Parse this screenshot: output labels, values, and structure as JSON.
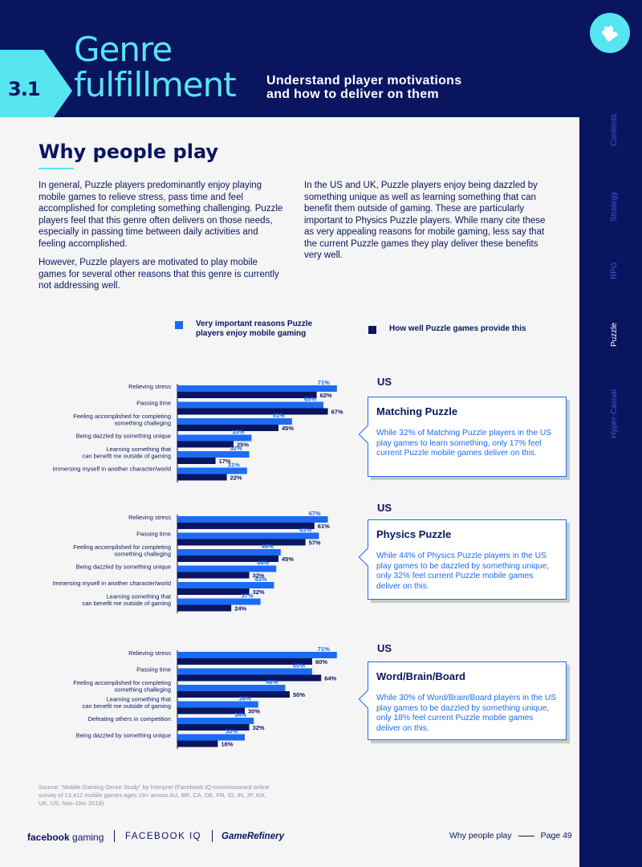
{
  "header": {
    "section_number": "3.1",
    "title_line1": "Genre",
    "title_line2": "fulfillment",
    "subtitle_line1": "Understand player motivations",
    "subtitle_line2": "and how to deliver on them"
  },
  "side_nav": [
    "Contents",
    "Strategy",
    "RPG",
    "Puzzle",
    "Hyper-Casual"
  ],
  "side_nav_active": "Puzzle",
  "page_title": "Why people play",
  "paragraphs": {
    "p1": "In general, Puzzle players predominantly enjoy playing mobile games to relieve stress, pass time and feel accomplished for completing something challenging. Puzzle players feel that this genre often delivers on those needs, especially in passing time between daily activities and feeling accomplished.",
    "p2": "However, Puzzle players are motivated to play mobile games for several other reasons that this genre is currently not addressing well.",
    "p3": "In the US and UK, Puzzle players enjoy being dazzled by something unique as well as learning something that can benefit them outside of gaming. These are particularly important to Physics Puzzle players. While many cite these as very appealing reasons for mobile gaming, less say that the current Puzzle games they play deliver these benefits very well."
  },
  "legend": {
    "series_a": "Very important reasons Puzzle players enjoy mobile gaming",
    "series_b": "How well Puzzle games provide this"
  },
  "colors": {
    "series_a": "#1c6bf5",
    "series_b": "#0a1560",
    "accent": "#57e5f0",
    "navy": "#0a1560"
  },
  "chart_data": [
    {
      "type": "bar",
      "orientation": "horizontal",
      "region": "US",
      "callout_title": "Matching Puzzle",
      "callout_text": "While 32% of Matching Puzzle players in the US play games to learn something, only 17% feel current Puzzle mobile games deliver on this.",
      "categories": [
        [
          "Relieving stress"
        ],
        [
          "Passing time"
        ],
        [
          "Feeling accomplished for completing",
          "something challeging"
        ],
        [
          "Being dazzled by something unique"
        ],
        [
          "Learning something that",
          "can benefit me outside of gaming"
        ],
        [
          "Immersing myself in another character/world"
        ]
      ],
      "series": [
        {
          "name": "Very important reasons Puzzle players enjoy mobile gaming",
          "values": [
            71,
            65,
            51,
            33,
            32,
            31
          ]
        },
        {
          "name": "How well Puzzle games provide this",
          "values": [
            62,
            67,
            45,
            25,
            17,
            22
          ]
        }
      ]
    },
    {
      "type": "bar",
      "orientation": "horizontal",
      "region": "US",
      "callout_title": "Physics Puzzle",
      "callout_text": "While 44% of Physics Puzzle players in the US play games to be dazzled by something unique, only 32% feel current Puzzle mobile games deliver on this.",
      "categories": [
        [
          "Relieving stress"
        ],
        [
          "Passing time"
        ],
        [
          "Feeling accomplished for completing",
          "something challeging"
        ],
        [
          "Being dazzled by something unique"
        ],
        [
          "Immersing myself in another character/world"
        ],
        [
          "Learning something that",
          "can benefit me outside of gaming"
        ]
      ],
      "series": [
        {
          "name": "Very important reasons Puzzle players enjoy mobile gaming",
          "values": [
            67,
            63,
            46,
            44,
            43,
            37
          ]
        },
        {
          "name": "How well Puzzle games provide this",
          "values": [
            61,
            57,
            45,
            32,
            32,
            24
          ]
        }
      ]
    },
    {
      "type": "bar",
      "orientation": "horizontal",
      "region": "US",
      "callout_title": "Word/Brain/Board",
      "callout_text": "While 30% of Word/Brain/Board players in the US play games to be dazzled by something unique, only 18% feel current Puzzle mobile games deliver on this.",
      "categories": [
        [
          "Relieving stress"
        ],
        [
          "Passing time"
        ],
        [
          "Feeling accomplished for completing",
          "something challeging"
        ],
        [
          "Learning something that",
          "can benefit me outside of gaming"
        ],
        [
          "Defeating others in competition"
        ],
        [
          "Being dazzled by something unique"
        ]
      ],
      "series": [
        {
          "name": "Very important reasons Puzzle players enjoy mobile gaming",
          "values": [
            71,
            60,
            48,
            36,
            34,
            30
          ]
        },
        {
          "name": "How well Puzzle games provide this",
          "values": [
            60,
            64,
            50,
            30,
            32,
            18
          ]
        }
      ]
    }
  ],
  "source": "Source: “Mobile Gaming Genre Study” by Interpret (Facebook IQ-commissioned online survey of 13,412 mobile games ages 18+ across AU, BR, CA, DE, FR, ID, IN, JP, KR, UK, US, Nov–Dec 2019)",
  "footer": {
    "logo1_bold": "facebook",
    "logo1_light": " gaming",
    "logo2": "FACEBOOK IQ",
    "logo3": "GameRefinery",
    "section": "Why people play",
    "page": "Page 49"
  }
}
